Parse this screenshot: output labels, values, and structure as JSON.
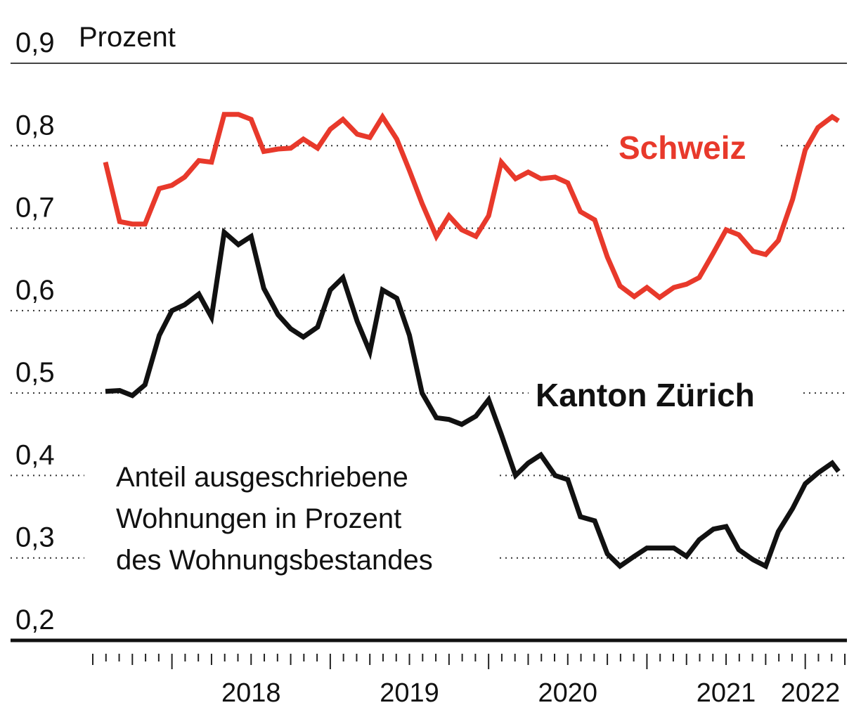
{
  "chart_data": {
    "type": "line",
    "unit": "Prozent",
    "note": [
      "Anteil ausgeschriebene",
      "Wohnungen in Prozent",
      "des Wohnungsbestandes"
    ],
    "y_ticks": [
      "0,9",
      "0,8",
      "0,7",
      "0,6",
      "0,5",
      "0,4",
      "0,3",
      "0,2"
    ],
    "y_tick_values": [
      0.9,
      0.8,
      0.7,
      0.6,
      0.5,
      0.4,
      0.3,
      0.2
    ],
    "ylim": [
      0.2,
      0.9
    ],
    "x_labels": [
      "2018",
      "2019",
      "2020",
      "2021",
      "2022"
    ],
    "x_range": [
      2017.5,
      2022.25
    ],
    "grid": true,
    "series": [
      {
        "name": "Schweiz",
        "color": "#e8392b",
        "x": [
          2017.58,
          2017.67,
          2017.75,
          2017.83,
          2017.92,
          2018.0,
          2018.08,
          2018.17,
          2018.25,
          2018.33,
          2018.42,
          2018.5,
          2018.58,
          2018.67,
          2018.75,
          2018.83,
          2018.92,
          2019.0,
          2019.08,
          2019.17,
          2019.25,
          2019.33,
          2019.42,
          2019.5,
          2019.58,
          2019.67,
          2019.75,
          2019.83,
          2019.92,
          2020.0,
          2020.08,
          2020.17,
          2020.25,
          2020.33,
          2020.42,
          2020.5,
          2020.58,
          2020.67,
          2020.75,
          2020.83,
          2020.92,
          2021.0,
          2021.08,
          2021.17,
          2021.25,
          2021.33,
          2021.42,
          2021.5,
          2021.58,
          2021.67,
          2021.75,
          2021.83,
          2021.92,
          2022.0,
          2022.08,
          2022.17,
          2022.21
        ],
        "values": [
          0.78,
          0.708,
          0.705,
          0.705,
          0.748,
          0.752,
          0.762,
          0.782,
          0.78,
          0.838,
          0.838,
          0.832,
          0.793,
          0.796,
          0.797,
          0.808,
          0.797,
          0.82,
          0.832,
          0.814,
          0.81,
          0.835,
          0.808,
          0.77,
          0.73,
          0.69,
          0.715,
          0.698,
          0.69,
          0.715,
          0.78,
          0.76,
          0.768,
          0.76,
          0.762,
          0.755,
          0.72,
          0.71,
          0.665,
          0.63,
          0.617,
          0.628,
          0.616,
          0.628,
          0.632,
          0.64,
          0.67,
          0.698,
          0.692,
          0.672,
          0.668,
          0.685,
          0.735,
          0.795,
          0.822,
          0.835,
          0.83
        ]
      },
      {
        "name": "Kanton Zürich",
        "color": "#111111",
        "x": [
          2017.58,
          2017.67,
          2017.75,
          2017.83,
          2017.92,
          2018.0,
          2018.08,
          2018.17,
          2018.25,
          2018.33,
          2018.42,
          2018.5,
          2018.58,
          2018.67,
          2018.75,
          2018.83,
          2018.92,
          2019.0,
          2019.08,
          2019.17,
          2019.25,
          2019.33,
          2019.42,
          2019.5,
          2019.58,
          2019.67,
          2019.75,
          2019.83,
          2019.92,
          2020.0,
          2020.08,
          2020.17,
          2020.25,
          2020.33,
          2020.42,
          2020.5,
          2020.58,
          2020.67,
          2020.75,
          2020.83,
          2020.92,
          2021.0,
          2021.08,
          2021.17,
          2021.25,
          2021.33,
          2021.42,
          2021.5,
          2021.58,
          2021.67,
          2021.75,
          2021.83,
          2021.92,
          2022.0,
          2022.08,
          2022.17,
          2022.21
        ],
        "values": [
          0.502,
          0.503,
          0.497,
          0.51,
          0.57,
          0.6,
          0.607,
          0.62,
          0.592,
          0.695,
          0.68,
          0.69,
          0.627,
          0.595,
          0.578,
          0.568,
          0.58,
          0.625,
          0.64,
          0.587,
          0.55,
          0.625,
          0.615,
          0.57,
          0.5,
          0.47,
          0.468,
          0.462,
          0.472,
          0.492,
          0.45,
          0.4,
          0.415,
          0.425,
          0.4,
          0.395,
          0.35,
          0.345,
          0.305,
          0.29,
          0.302,
          0.312,
          0.312,
          0.312,
          0.302,
          0.322,
          0.335,
          0.338,
          0.31,
          0.298,
          0.29,
          0.332,
          0.36,
          0.39,
          0.403,
          0.415,
          0.405
        ]
      }
    ]
  }
}
